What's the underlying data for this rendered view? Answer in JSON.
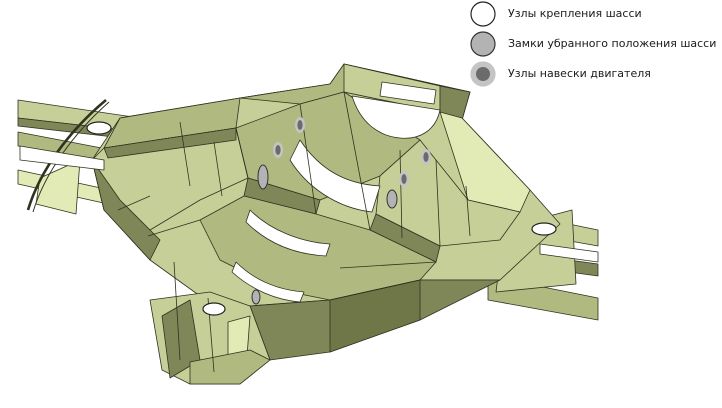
{
  "legend": {
    "items": [
      {
        "label": "Узлы крепления шасси",
        "fill": "#ffffff",
        "stroke": "#222222",
        "inner": null
      },
      {
        "label": "Замки убранного положения шасси",
        "fill": "#b3b3b3",
        "stroke": "#333333",
        "inner": null
      },
      {
        "label": "Узлы навески двигателя",
        "fill": "#c4c4c4",
        "stroke": "#c4c4c4",
        "inner": "#6b6b6b"
      }
    ]
  },
  "colors": {
    "structure_light": "#c6cf98",
    "structure_mid": "#b0b97f",
    "structure_dark": "#7f8758",
    "structure_pale": "#e2eab5",
    "edge": "#2e3320"
  }
}
